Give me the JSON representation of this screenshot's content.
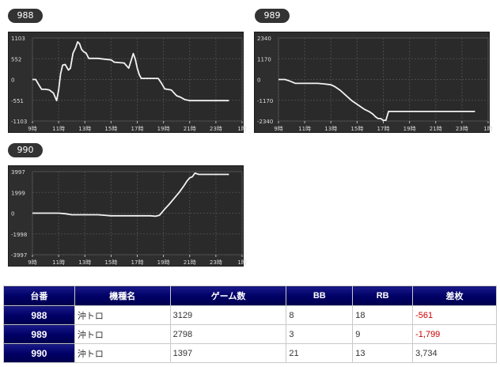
{
  "machines": [
    {
      "unit": "988"
    },
    {
      "unit": "989"
    },
    {
      "unit": "990"
    }
  ],
  "chart_data": [
    {
      "type": "line",
      "unit": "988",
      "xlim": [
        9,
        25
      ],
      "ylim": [
        -1103,
        1103
      ],
      "yticks": [
        "1103",
        "552",
        "0",
        "-551",
        "-1103"
      ],
      "xticks": [
        "9時",
        "11時",
        "13時",
        "15時",
        "17時",
        "19時",
        "21時",
        "23時",
        "1時"
      ],
      "x": [
        9.0,
        9.25,
        9.5,
        9.7,
        10.0,
        10.3,
        10.6,
        10.85,
        11.0,
        11.15,
        11.3,
        11.5,
        11.75,
        11.9,
        12.1,
        12.3,
        12.45,
        12.6,
        12.75,
        12.9,
        13.1,
        13.3,
        13.55,
        14.0,
        14.5,
        15.0,
        15.25,
        15.6,
        16.0,
        16.35,
        16.55,
        16.7,
        16.85,
        17.0,
        17.15,
        17.3,
        17.5,
        18.0,
        18.6,
        18.85,
        19.1,
        19.6,
        20.0,
        20.3,
        20.6,
        21.0,
        22.0,
        23.0,
        24.0
      ],
      "y": [
        0,
        0,
        -150,
        -260,
        -260,
        -280,
        -360,
        -560,
        -280,
        150,
        380,
        400,
        250,
        300,
        700,
        850,
        1000,
        950,
        800,
        740,
        700,
        560,
        560,
        560,
        540,
        520,
        460,
        450,
        440,
        300,
        520,
        690,
        540,
        300,
        130,
        30,
        30,
        30,
        30,
        -100,
        -250,
        -280,
        -430,
        -470,
        -530,
        -561,
        -561,
        -561,
        -561
      ]
    },
    {
      "type": "line",
      "unit": "989",
      "xlim": [
        9,
        25
      ],
      "ylim": [
        -2340,
        2340
      ],
      "yticks": [
        "2340",
        "1170",
        "0",
        "-1170",
        "-2340"
      ],
      "xticks": [
        "9時",
        "11時",
        "13時",
        "15時",
        "17時",
        "19時",
        "21時",
        "23時",
        "1時"
      ],
      "x": [
        9.0,
        9.5,
        9.9,
        10.3,
        11.0,
        12.0,
        12.5,
        13.0,
        13.3,
        13.7,
        14.0,
        14.3,
        14.6,
        15.0,
        15.3,
        15.6,
        15.9,
        16.2,
        16.4,
        16.6,
        16.8,
        17.0,
        17.2,
        17.4,
        17.6,
        18.0,
        19.0,
        20.0,
        21.0,
        22.0,
        23.0,
        24.0
      ],
      "y": [
        0,
        0,
        -100,
        -220,
        -220,
        -220,
        -250,
        -300,
        -400,
        -600,
        -800,
        -1000,
        -1200,
        -1400,
        -1550,
        -1700,
        -1800,
        -1950,
        -2100,
        -2200,
        -2200,
        -2300,
        -2300,
        -1800,
        -1799,
        -1799,
        -1799,
        -1799,
        -1799,
        -1799,
        -1799,
        -1799
      ]
    },
    {
      "type": "line",
      "unit": "990",
      "xlim": [
        9,
        25
      ],
      "ylim": [
        -3997,
        3997
      ],
      "yticks": [
        "3997",
        "1999",
        "0",
        "-1998",
        "-3997"
      ],
      "xticks": [
        "9時",
        "11時",
        "13時",
        "15時",
        "17時",
        "19時",
        "21時",
        "23時",
        "1時"
      ],
      "x": [
        9.0,
        10.0,
        11.0,
        11.5,
        12.0,
        13.0,
        14.0,
        15.0,
        16.0,
        17.0,
        18.0,
        18.4,
        18.7,
        18.9,
        19.1,
        19.4,
        19.8,
        20.2,
        20.6,
        20.8,
        21.0,
        21.2,
        21.4,
        21.7,
        22.0,
        23.0,
        24.0
      ],
      "y": [
        0,
        0,
        0,
        -50,
        -150,
        -150,
        -150,
        -250,
        -250,
        -250,
        -250,
        -300,
        -200,
        100,
        400,
        800,
        1400,
        2000,
        2700,
        3100,
        3400,
        3500,
        3850,
        3734,
        3734,
        3734,
        3734
      ]
    }
  ],
  "table": {
    "headers": [
      "台番",
      "機種名",
      "ゲーム数",
      "BB",
      "RB",
      "差枚"
    ],
    "rows": [
      {
        "unit": "988",
        "model": "沖トロ",
        "games": "3129",
        "bb": "8",
        "rb": "18",
        "diff": "-561",
        "negative": true
      },
      {
        "unit": "989",
        "model": "沖トロ",
        "games": "2798",
        "bb": "3",
        "rb": "9",
        "diff": "-1,799",
        "negative": true
      },
      {
        "unit": "990",
        "model": "沖トロ",
        "games": "1397",
        "bb": "21",
        "rb": "13",
        "diff": "3,734",
        "negative": false
      }
    ]
  }
}
